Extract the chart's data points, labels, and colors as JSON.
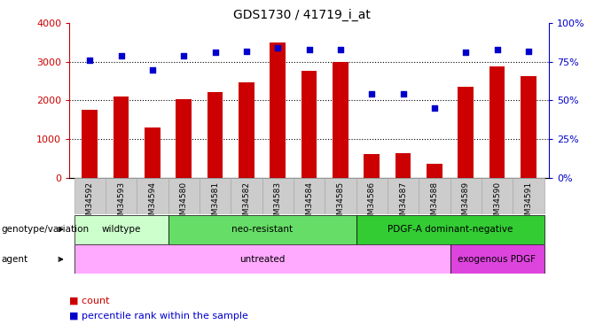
{
  "title": "GDS1730 / 41719_i_at",
  "samples": [
    "GSM34592",
    "GSM34593",
    "GSM34594",
    "GSM34580",
    "GSM34581",
    "GSM34582",
    "GSM34583",
    "GSM34584",
    "GSM34585",
    "GSM34586",
    "GSM34587",
    "GSM34588",
    "GSM34589",
    "GSM34590",
    "GSM34591"
  ],
  "counts": [
    1750,
    2100,
    1310,
    2030,
    2210,
    2480,
    3490,
    2760,
    3000,
    600,
    630,
    360,
    2360,
    2880,
    2640
  ],
  "percentiles": [
    76,
    79,
    70,
    79,
    81,
    82,
    84,
    83,
    83,
    54,
    54,
    45,
    81,
    83,
    82
  ],
  "bar_color": "#cc0000",
  "dot_color": "#0000cc",
  "ylim_left": [
    0,
    4000
  ],
  "ylim_right": [
    0,
    100
  ],
  "yticks_left": [
    0,
    1000,
    2000,
    3000,
    4000
  ],
  "ytick_labels_right": [
    "0%",
    "25%",
    "50%",
    "75%",
    "100%"
  ],
  "yticks_right": [
    0,
    25,
    50,
    75,
    100
  ],
  "genotype_groups": [
    {
      "label": "wildtype",
      "start": 0,
      "end": 3,
      "color": "#ccffcc"
    },
    {
      "label": "neo-resistant",
      "start": 3,
      "end": 9,
      "color": "#66dd66"
    },
    {
      "label": "PDGF-A dominant-negative",
      "start": 9,
      "end": 15,
      "color": "#33cc33"
    }
  ],
  "agent_groups": [
    {
      "label": "untreated",
      "start": 0,
      "end": 12,
      "color": "#ffaaff"
    },
    {
      "label": "exogenous PDGF",
      "start": 12,
      "end": 15,
      "color": "#dd44dd"
    }
  ],
  "bar_color_red": "#cc0000",
  "dot_color_blue": "#0000cc",
  "xtick_bg": "#cccccc",
  "xtick_border": "#aaaaaa",
  "bar_width": 0.5,
  "background_color": "#ffffff",
  "annotation_row1_label": "genotype/variation",
  "annotation_row2_label": "agent",
  "legend_label_count": "count",
  "legend_label_pct": "percentile rank within the sample"
}
